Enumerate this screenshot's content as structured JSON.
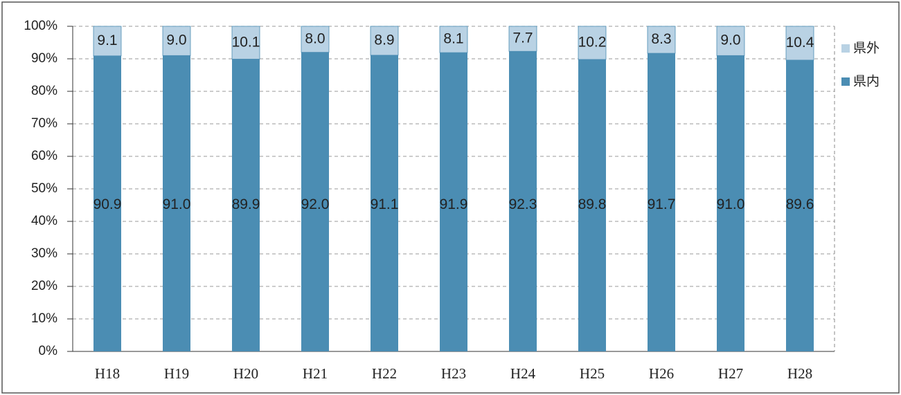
{
  "chart_data": {
    "type": "stacked_bar",
    "categories": [
      "H18",
      "H19",
      "H20",
      "H21",
      "H22",
      "H23",
      "H24",
      "H25",
      "H26",
      "H27",
      "H28"
    ],
    "series": [
      {
        "name": "県内",
        "color": "#4b8db3",
        "values": [
          90.9,
          91.0,
          89.9,
          92.0,
          91.1,
          91.9,
          92.3,
          89.8,
          91.7,
          91.0,
          89.6
        ],
        "value_labels": [
          "90.9",
          "91.0",
          "89.9",
          "92.0",
          "91.1",
          "91.9",
          "92.3",
          "89.8",
          "91.7",
          "91.0",
          "89.6"
        ]
      },
      {
        "name": "県外",
        "color": "#b9d2e4",
        "values": [
          9.1,
          9.0,
          10.1,
          8.0,
          8.9,
          8.1,
          7.7,
          10.2,
          8.3,
          9.0,
          10.4
        ],
        "value_labels": [
          "9.1",
          "9.0",
          "10.1",
          "8.0",
          "8.9",
          "8.1",
          "7.7",
          "10.2",
          "8.3",
          "9.0",
          "10.4"
        ]
      }
    ],
    "ylim": [
      0,
      100
    ],
    "yticks": [
      {
        "value": 0,
        "label": "0%"
      },
      {
        "value": 10,
        "label": "10%"
      },
      {
        "value": 20,
        "label": "20%"
      },
      {
        "value": 30,
        "label": "30%"
      },
      {
        "value": 40,
        "label": "40%"
      },
      {
        "value": 50,
        "label": "50%"
      },
      {
        "value": 60,
        "label": "60%"
      },
      {
        "value": 70,
        "label": "70%"
      },
      {
        "value": 80,
        "label": "80%"
      },
      {
        "value": 90,
        "label": "90%"
      },
      {
        "value": 100,
        "label": "100%"
      }
    ],
    "grid": true,
    "legend": "right"
  }
}
